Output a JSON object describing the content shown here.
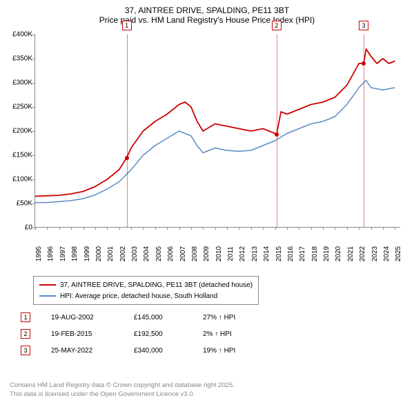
{
  "title": "37, AINTREE DRIVE, SPALDING, PE11 3BT",
  "subtitle": "Price paid vs. HM Land Registry's House Price Index (HPI)",
  "chart": {
    "type": "line",
    "background_color": "#ffffff",
    "xlim": [
      1995,
      2025.5
    ],
    "ylim": [
      0,
      400000
    ],
    "ytick_step": 50000,
    "yticks": [
      {
        "v": 0,
        "label": "£0"
      },
      {
        "v": 50000,
        "label": "£50K"
      },
      {
        "v": 100000,
        "label": "£100K"
      },
      {
        "v": 150000,
        "label": "£150K"
      },
      {
        "v": 200000,
        "label": "£200K"
      },
      {
        "v": 250000,
        "label": "£250K"
      },
      {
        "v": 300000,
        "label": "£300K"
      },
      {
        "v": 350000,
        "label": "£350K"
      },
      {
        "v": 400000,
        "label": "£400K"
      }
    ],
    "xticks": [
      1995,
      1996,
      1997,
      1998,
      1999,
      2000,
      2001,
      2002,
      2003,
      2004,
      2005,
      2006,
      2007,
      2008,
      2009,
      2010,
      2011,
      2012,
      2013,
      2014,
      2015,
      2016,
      2017,
      2018,
      2019,
      2020,
      2021,
      2022,
      2023,
      2024,
      2025
    ],
    "series": [
      {
        "name": "37, AINTREE DRIVE, SPALDING, PE11 3BT (detached house)",
        "color": "#cc0000",
        "line_width": 1.8,
        "data": [
          [
            1995,
            65000
          ],
          [
            1996,
            66000
          ],
          [
            1997,
            67000
          ],
          [
            1998,
            70000
          ],
          [
            1999,
            75000
          ],
          [
            2000,
            85000
          ],
          [
            2001,
            100000
          ],
          [
            2002,
            120000
          ],
          [
            2002.63,
            145000
          ],
          [
            2003,
            165000
          ],
          [
            2004,
            200000
          ],
          [
            2005,
            220000
          ],
          [
            2006,
            235000
          ],
          [
            2007,
            255000
          ],
          [
            2007.5,
            260000
          ],
          [
            2008,
            250000
          ],
          [
            2008.5,
            220000
          ],
          [
            2009,
            200000
          ],
          [
            2010,
            215000
          ],
          [
            2011,
            210000
          ],
          [
            2012,
            205000
          ],
          [
            2013,
            200000
          ],
          [
            2014,
            205000
          ],
          [
            2015,
            195000
          ],
          [
            2015.13,
            192500
          ],
          [
            2015.5,
            240000
          ],
          [
            2016,
            235000
          ],
          [
            2017,
            245000
          ],
          [
            2018,
            255000
          ],
          [
            2019,
            260000
          ],
          [
            2020,
            270000
          ],
          [
            2021,
            295000
          ],
          [
            2022,
            340000
          ],
          [
            2022.4,
            340000
          ],
          [
            2022.6,
            370000
          ],
          [
            2023,
            355000
          ],
          [
            2023.5,
            340000
          ],
          [
            2024,
            350000
          ],
          [
            2024.5,
            340000
          ],
          [
            2025,
            345000
          ]
        ]
      },
      {
        "name": "HPI: Average price, detached house, South Holland",
        "color": "#5b8ac6",
        "line_width": 1.5,
        "data": [
          [
            1995,
            52000
          ],
          [
            1996,
            52000
          ],
          [
            1997,
            54000
          ],
          [
            1998,
            56000
          ],
          [
            1999,
            60000
          ],
          [
            2000,
            68000
          ],
          [
            2001,
            80000
          ],
          [
            2002,
            95000
          ],
          [
            2003,
            120000
          ],
          [
            2004,
            150000
          ],
          [
            2005,
            170000
          ],
          [
            2006,
            185000
          ],
          [
            2007,
            200000
          ],
          [
            2008,
            190000
          ],
          [
            2008.5,
            170000
          ],
          [
            2009,
            155000
          ],
          [
            2010,
            165000
          ],
          [
            2011,
            160000
          ],
          [
            2012,
            158000
          ],
          [
            2013,
            160000
          ],
          [
            2014,
            170000
          ],
          [
            2015,
            180000
          ],
          [
            2016,
            195000
          ],
          [
            2017,
            205000
          ],
          [
            2018,
            215000
          ],
          [
            2019,
            220000
          ],
          [
            2020,
            230000
          ],
          [
            2021,
            255000
          ],
          [
            2022,
            290000
          ],
          [
            2022.6,
            305000
          ],
          [
            2023,
            290000
          ],
          [
            2024,
            285000
          ],
          [
            2025,
            290000
          ]
        ]
      }
    ],
    "markers": [
      {
        "n": 1,
        "x": 2002.63,
        "y": 145000,
        "color": "#cc0000"
      },
      {
        "n": 2,
        "x": 2015.13,
        "y": 192500,
        "color": "#cc0000"
      },
      {
        "n": 3,
        "x": 2022.4,
        "y": 340000,
        "color": "#cc0000"
      }
    ]
  },
  "legend": {
    "items": [
      {
        "color": "#cc0000",
        "label": "37, AINTREE DRIVE, SPALDING, PE11 3BT (detached house)"
      },
      {
        "color": "#5b8ac6",
        "label": "HPI: Average price, detached house, South Holland"
      }
    ]
  },
  "sales": [
    {
      "n": 1,
      "color": "#cc0000",
      "date": "19-AUG-2002",
      "price": "£145,000",
      "delta": "27% ↑ HPI"
    },
    {
      "n": 2,
      "color": "#cc0000",
      "date": "19-FEB-2015",
      "price": "£192,500",
      "delta": "2% ↑ HPI"
    },
    {
      "n": 3,
      "color": "#cc0000",
      "date": "25-MAY-2022",
      "price": "£340,000",
      "delta": "19% ↑ HPI"
    }
  ],
  "footer_line1": "Contains HM Land Registry data © Crown copyright and database right 2025.",
  "footer_line2": "This data is licensed under the Open Government Licence v3.0."
}
